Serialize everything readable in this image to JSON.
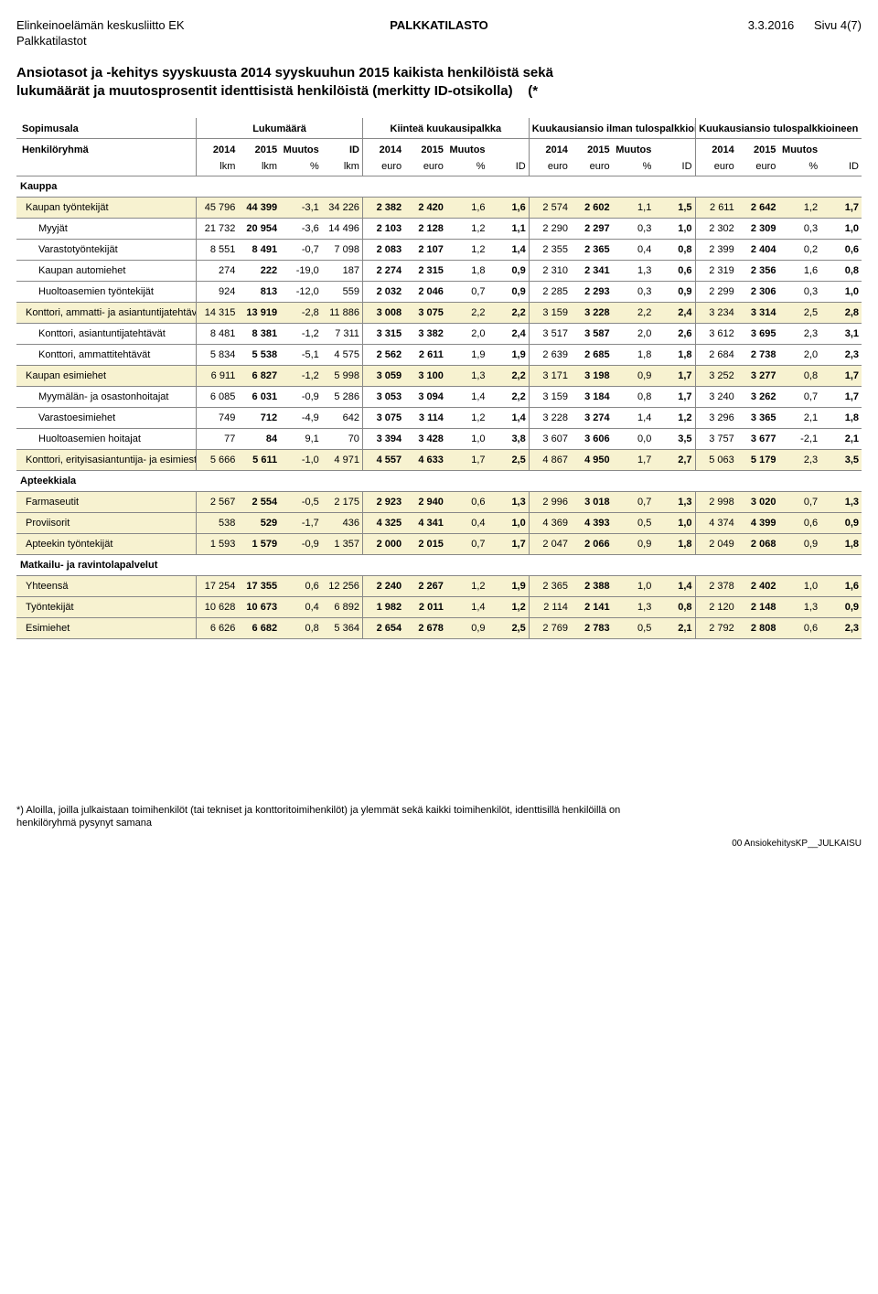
{
  "header": {
    "org": "Elinkeinoelämän keskusliitto EK",
    "sub": "Palkkatilastot",
    "center": "PALKKATILASTO",
    "date": "3.3.2016",
    "page": "Sivu 4(7)"
  },
  "title": {
    "line1": "Ansiotasot ja -kehitys syyskuusta 2014 syyskuuhun 2015 kaikista henkilöistä sekä",
    "line2": "lukumäärät ja muutosprosentit identtisistä henkilöistä (merkitty ID-otsikolla)",
    "marker": "(*"
  },
  "colhead": {
    "top": {
      "sopimusala": "Sopimusala",
      "henkiloryhma": "Henkilöryhmä",
      "lukumaara": "Lukumäärä",
      "kiintea": "Kiinteä kuukausipalkka",
      "ilman": "Kuukausiansio ilman tulospalkkioita",
      "kanssa": "Kuukausiansio tulospalkkioineen"
    },
    "y2014": "2014",
    "y2015": "2015",
    "muutos": "Muutos",
    "pct": "%",
    "id": "ID",
    "lkm": "lkm",
    "euro": "euro",
    "idlkm_top": "ID",
    "idlkm_bot": "lkm"
  },
  "sections": [
    {
      "label": "Kauppa",
      "shade": false,
      "rows": [
        {
          "indent": 1,
          "shade": true,
          "label": "Kaupan työntekijät",
          "v": [
            "45 796",
            "44 399",
            "-3,1",
            "34 226",
            "2 382",
            "2 420",
            "1,6",
            "1,6",
            "2 574",
            "2 602",
            "1,1",
            "1,5",
            "2 611",
            "2 642",
            "1,2",
            "1,7"
          ]
        },
        {
          "indent": 2,
          "shade": false,
          "label": "Myyjät",
          "v": [
            "21 732",
            "20 954",
            "-3,6",
            "14 496",
            "2 103",
            "2 128",
            "1,2",
            "1,1",
            "2 290",
            "2 297",
            "0,3",
            "1,0",
            "2 302",
            "2 309",
            "0,3",
            "1,0"
          ]
        },
        {
          "indent": 2,
          "shade": false,
          "label": "Varastotyöntekijät",
          "v": [
            "8 551",
            "8 491",
            "-0,7",
            "7 098",
            "2 083",
            "2 107",
            "1,2",
            "1,4",
            "2 355",
            "2 365",
            "0,4",
            "0,8",
            "2 399",
            "2 404",
            "0,2",
            "0,6"
          ]
        },
        {
          "indent": 2,
          "shade": false,
          "label": "Kaupan automiehet",
          "v": [
            "274",
            "222",
            "-19,0",
            "187",
            "2 274",
            "2 315",
            "1,8",
            "0,9",
            "2 310",
            "2 341",
            "1,3",
            "0,6",
            "2 319",
            "2 356",
            "1,6",
            "0,8"
          ]
        },
        {
          "indent": 2,
          "shade": false,
          "label": "Huoltoasemien työntekijät",
          "v": [
            "924",
            "813",
            "-12,0",
            "559",
            "2 032",
            "2 046",
            "0,7",
            "0,9",
            "2 285",
            "2 293",
            "0,3",
            "0,9",
            "2 299",
            "2 306",
            "0,3",
            "1,0"
          ]
        },
        {
          "indent": 1,
          "shade": true,
          "label": "Konttori, ammatti- ja asiantuntijatehtävät",
          "v": [
            "14 315",
            "13 919",
            "-2,8",
            "11 886",
            "3 008",
            "3 075",
            "2,2",
            "2,2",
            "3 159",
            "3 228",
            "2,2",
            "2,4",
            "3 234",
            "3 314",
            "2,5",
            "2,8"
          ]
        },
        {
          "indent": 2,
          "shade": false,
          "label": "Konttori, asiantuntijatehtävät",
          "v": [
            "8 481",
            "8 381",
            "-1,2",
            "7 311",
            "3 315",
            "3 382",
            "2,0",
            "2,4",
            "3 517",
            "3 587",
            "2,0",
            "2,6",
            "3 612",
            "3 695",
            "2,3",
            "3,1"
          ]
        },
        {
          "indent": 2,
          "shade": false,
          "label": "Konttori, ammattitehtävät",
          "v": [
            "5 834",
            "5 538",
            "-5,1",
            "4 575",
            "2 562",
            "2 611",
            "1,9",
            "1,9",
            "2 639",
            "2 685",
            "1,8",
            "1,8",
            "2 684",
            "2 738",
            "2,0",
            "2,3"
          ]
        },
        {
          "indent": 1,
          "shade": true,
          "label": "Kaupan esimiehet",
          "v": [
            "6 911",
            "6 827",
            "-1,2",
            "5 998",
            "3 059",
            "3 100",
            "1,3",
            "2,2",
            "3 171",
            "3 198",
            "0,9",
            "1,7",
            "3 252",
            "3 277",
            "0,8",
            "1,7"
          ]
        },
        {
          "indent": 2,
          "shade": false,
          "label": "Myymälän- ja osastonhoitajat",
          "v": [
            "6 085",
            "6 031",
            "-0,9",
            "5 286",
            "3 053",
            "3 094",
            "1,4",
            "2,2",
            "3 159",
            "3 184",
            "0,8",
            "1,7",
            "3 240",
            "3 262",
            "0,7",
            "1,7"
          ]
        },
        {
          "indent": 2,
          "shade": false,
          "label": "Varastoesimiehet",
          "v": [
            "749",
            "712",
            "-4,9",
            "642",
            "3 075",
            "3 114",
            "1,2",
            "1,4",
            "3 228",
            "3 274",
            "1,4",
            "1,2",
            "3 296",
            "3 365",
            "2,1",
            "1,8"
          ]
        },
        {
          "indent": 2,
          "shade": false,
          "label": "Huoltoasemien hoitajat",
          "v": [
            "77",
            "84",
            "9,1",
            "70",
            "3 394",
            "3 428",
            "1,0",
            "3,8",
            "3 607",
            "3 606",
            "0,0",
            "3,5",
            "3 757",
            "3 677",
            "-2,1",
            "2,1"
          ]
        },
        {
          "indent": 1,
          "shade": true,
          "label": "Konttori, erityisasiantuntija- ja esimiestehtävät",
          "v": [
            "5 666",
            "5 611",
            "-1,0",
            "4 971",
            "4 557",
            "4 633",
            "1,7",
            "2,5",
            "4 867",
            "4 950",
            "1,7",
            "2,7",
            "5 063",
            "5 179",
            "2,3",
            "3,5"
          ]
        }
      ]
    },
    {
      "label": "Apteekkiala",
      "shade": false,
      "rows": [
        {
          "indent": 1,
          "shade": true,
          "label": "Farmaseutit",
          "v": [
            "2 567",
            "2 554",
            "-0,5",
            "2 175",
            "2 923",
            "2 940",
            "0,6",
            "1,3",
            "2 996",
            "3 018",
            "0,7",
            "1,3",
            "2 998",
            "3 020",
            "0,7",
            "1,3"
          ]
        },
        {
          "indent": 1,
          "shade": true,
          "label": "Proviisorit",
          "v": [
            "538",
            "529",
            "-1,7",
            "436",
            "4 325",
            "4 341",
            "0,4",
            "1,0",
            "4 369",
            "4 393",
            "0,5",
            "1,0",
            "4 374",
            "4 399",
            "0,6",
            "0,9"
          ]
        },
        {
          "indent": 1,
          "shade": true,
          "label": "Apteekin työntekijät",
          "v": [
            "1 593",
            "1 579",
            "-0,9",
            "1 357",
            "2 000",
            "2 015",
            "0,7",
            "1,7",
            "2 047",
            "2 066",
            "0,9",
            "1,8",
            "2 049",
            "2 068",
            "0,9",
            "1,8"
          ]
        }
      ]
    },
    {
      "label": "Matkailu- ja ravintolapalvelut",
      "shade": false,
      "rows": [
        {
          "indent": 1,
          "shade": true,
          "label": "Yhteensä",
          "v": [
            "17 254",
            "17 355",
            "0,6",
            "12 256",
            "2 240",
            "2 267",
            "1,2",
            "1,9",
            "2 365",
            "2 388",
            "1,0",
            "1,4",
            "2 378",
            "2 402",
            "1,0",
            "1,6"
          ]
        },
        {
          "indent": 1,
          "shade": true,
          "label": "Työntekijät",
          "v": [
            "10 628",
            "10 673",
            "0,4",
            "6 892",
            "1 982",
            "2 011",
            "1,4",
            "1,2",
            "2 114",
            "2 141",
            "1,3",
            "0,8",
            "2 120",
            "2 148",
            "1,3",
            "0,9"
          ]
        },
        {
          "indent": 1,
          "shade": true,
          "label": "Esimiehet",
          "v": [
            "6 626",
            "6 682",
            "0,8",
            "5 364",
            "2 654",
            "2 678",
            "0,9",
            "2,5",
            "2 769",
            "2 783",
            "0,5",
            "2,1",
            "2 792",
            "2 808",
            "0,6",
            "2,3"
          ]
        }
      ]
    }
  ],
  "footnote": {
    "l1": "*) Aloilla, joilla julkaistaan toimihenkilöt (tai tekniset ja konttoritoimihenkilöt) ja ylemmät sekä kaikki toimihenkilöt, identtisillä henkilöillä on",
    "l2": "henkilöryhmä pysynyt samana"
  },
  "footcode": "00 AnsiokehitysKP__JULKAISU",
  "style": {
    "shade_bg": "#f7f2d0",
    "border": "#888888",
    "text": "#000000",
    "bg": "#ffffff"
  }
}
